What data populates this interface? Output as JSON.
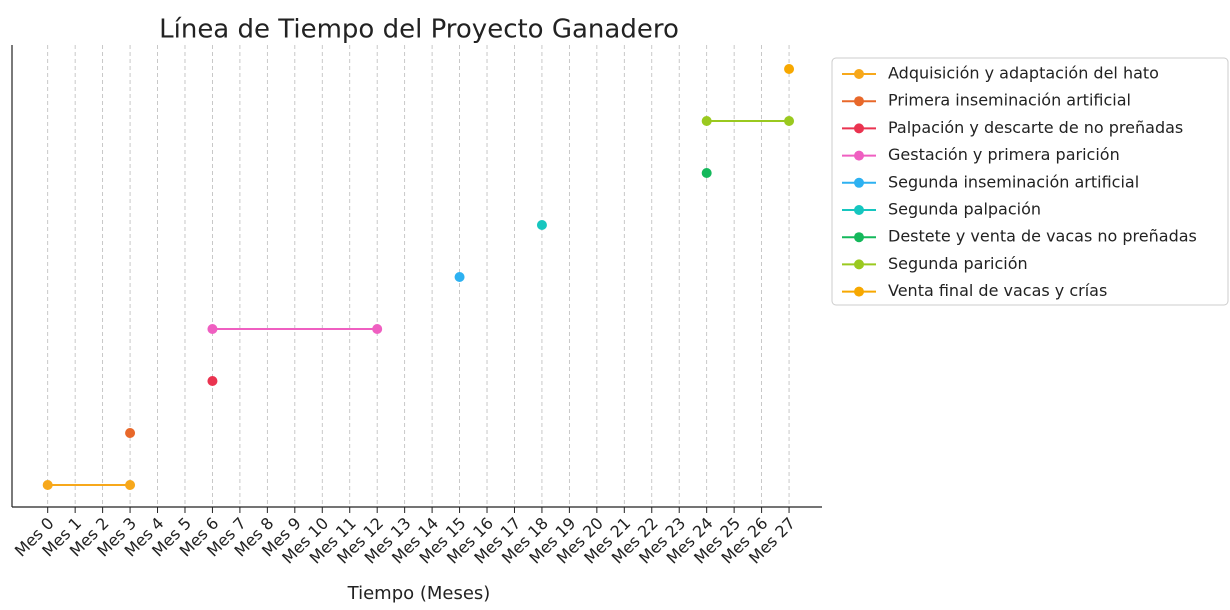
{
  "chart_data": {
    "type": "timeline",
    "title": "Línea de Tiempo del Proyecto Ganadero",
    "x_label": "Tiempo (Meses)",
    "xlim": [
      -1.3,
      28.2
    ],
    "xticks": [
      {
        "value": 0,
        "label": "Mes 0"
      },
      {
        "value": 1,
        "label": "Mes 1"
      },
      {
        "value": 2,
        "label": "Mes 2"
      },
      {
        "value": 3,
        "label": "Mes 3"
      },
      {
        "value": 4,
        "label": "Mes 4"
      },
      {
        "value": 5,
        "label": "Mes 5"
      },
      {
        "value": 6,
        "label": "Mes 6"
      },
      {
        "value": 7,
        "label": "Mes 7"
      },
      {
        "value": 8,
        "label": "Mes 8"
      },
      {
        "value": 9,
        "label": "Mes 9"
      },
      {
        "value": 10,
        "label": "Mes 10"
      },
      {
        "value": 11,
        "label": "Mes 11"
      },
      {
        "value": 12,
        "label": "Mes 12"
      },
      {
        "value": 13,
        "label": "Mes 13"
      },
      {
        "value": 14,
        "label": "Mes 14"
      },
      {
        "value": 15,
        "label": "Mes 15"
      },
      {
        "value": 16,
        "label": "Mes 16"
      },
      {
        "value": 17,
        "label": "Mes 17"
      },
      {
        "value": 18,
        "label": "Mes 18"
      },
      {
        "value": 19,
        "label": "Mes 19"
      },
      {
        "value": 20,
        "label": "Mes 20"
      },
      {
        "value": 21,
        "label": "Mes 21"
      },
      {
        "value": 22,
        "label": "Mes 22"
      },
      {
        "value": 23,
        "label": "Mes 23"
      },
      {
        "value": 24,
        "label": "Mes 24"
      },
      {
        "value": 25,
        "label": "Mes 25"
      },
      {
        "value": 26,
        "label": "Mes 26"
      },
      {
        "value": 27,
        "label": "Mes 27"
      }
    ],
    "grid": true,
    "legend": "outside right",
    "series": [
      {
        "name": "Adquisición y adaptación del hato",
        "color": "#f7a81b",
        "values": [
          0,
          3
        ]
      },
      {
        "name": "Primera inseminación artificial",
        "color": "#e8682a",
        "values": [
          3
        ]
      },
      {
        "name": "Palpación y descarte de no preñadas",
        "color": "#ea3350",
        "values": [
          6
        ]
      },
      {
        "name": "Gestación y primera parición",
        "color": "#ef5fc1",
        "values": [
          6,
          12
        ]
      },
      {
        "name": "Segunda inseminación artificial",
        "color": "#2db1f1",
        "values": [
          15
        ]
      },
      {
        "name": "Segunda palpación",
        "color": "#16c6bf",
        "values": [
          18
        ]
      },
      {
        "name": "Destete y venta de vacas no preñadas",
        "color": "#14b85b",
        "values": [
          24
        ]
      },
      {
        "name": "Segunda parición",
        "color": "#9ac91f",
        "values": [
          24,
          27
        ]
      },
      {
        "name": "Venta final de vacas y crías",
        "color": "#f7a800",
        "values": [
          27
        ]
      }
    ]
  }
}
